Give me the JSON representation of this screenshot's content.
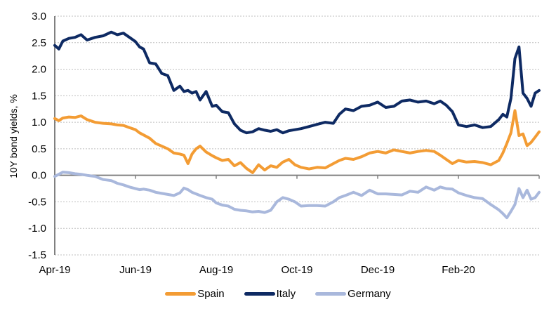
{
  "chart_data": {
    "type": "line",
    "title": "",
    "xlabel": "",
    "ylabel": "10Y bond yields, %",
    "ylim": [
      -1.5,
      3.0
    ],
    "yticks": [
      3.0,
      2.5,
      2.0,
      1.5,
      1.0,
      0.5,
      0.0,
      -0.5,
      -1.0,
      -1.5
    ],
    "ytick_labels": [
      "3.0",
      "2.5",
      "2.0",
      "1.5",
      "1.0",
      "0.5",
      "0.0",
      "-0.5",
      "-1.0",
      "-1.5"
    ],
    "xlim": [
      0,
      12
    ],
    "xticks": [
      0,
      2,
      4,
      6,
      8,
      10
    ],
    "xtick_labels": [
      "Apr-19",
      "Jun-19",
      "Aug-19",
      "Oct-19",
      "Dec-19",
      "Feb-20"
    ],
    "x_unit": "months since Apr-19",
    "grid": "horizontal dotted",
    "legend_position": "bottom",
    "x": [
      0.0,
      0.1,
      0.2,
      0.35,
      0.5,
      0.65,
      0.8,
      1.0,
      1.2,
      1.4,
      1.55,
      1.7,
      1.85,
      2.0,
      2.1,
      2.2,
      2.35,
      2.5,
      2.65,
      2.8,
      2.95,
      3.1,
      3.2,
      3.3,
      3.4,
      3.5,
      3.6,
      3.75,
      3.9,
      4.0,
      4.15,
      4.3,
      4.45,
      4.6,
      4.75,
      4.9,
      5.05,
      5.2,
      5.35,
      5.5,
      5.65,
      5.8,
      5.95,
      6.1,
      6.3,
      6.5,
      6.7,
      6.9,
      7.05,
      7.2,
      7.4,
      7.6,
      7.8,
      8.0,
      8.2,
      8.4,
      8.6,
      8.8,
      9.0,
      9.2,
      9.4,
      9.55,
      9.7,
      9.85,
      10.0,
      10.2,
      10.4,
      10.6,
      10.8,
      11.0,
      11.1,
      11.2,
      11.3,
      11.4,
      11.5,
      11.6,
      11.7,
      11.8,
      11.9,
      12.0
    ],
    "series": [
      {
        "name": "Spain",
        "color": "#F39C34",
        "values": [
          1.07,
          1.03,
          1.08,
          1.1,
          1.09,
          1.12,
          1.05,
          1.0,
          0.98,
          0.97,
          0.95,
          0.94,
          0.9,
          0.86,
          0.8,
          0.76,
          0.7,
          0.6,
          0.55,
          0.5,
          0.42,
          0.4,
          0.38,
          0.22,
          0.4,
          0.5,
          0.55,
          0.44,
          0.37,
          0.33,
          0.28,
          0.3,
          0.18,
          0.24,
          0.13,
          0.05,
          0.2,
          0.1,
          0.18,
          0.15,
          0.25,
          0.3,
          0.2,
          0.15,
          0.12,
          0.15,
          0.14,
          0.22,
          0.28,
          0.32,
          0.3,
          0.35,
          0.42,
          0.45,
          0.42,
          0.48,
          0.45,
          0.42,
          0.45,
          0.47,
          0.45,
          0.38,
          0.3,
          0.22,
          0.28,
          0.25,
          0.26,
          0.24,
          0.2,
          0.28,
          0.42,
          0.6,
          0.8,
          1.22,
          0.75,
          0.78,
          0.56,
          0.62,
          0.72,
          0.82
        ]
      },
      {
        "name": "Italy",
        "color": "#0E2A63",
        "values": [
          2.45,
          2.38,
          2.53,
          2.58,
          2.6,
          2.65,
          2.55,
          2.6,
          2.63,
          2.7,
          2.65,
          2.68,
          2.6,
          2.52,
          2.42,
          2.38,
          2.12,
          2.1,
          1.92,
          1.88,
          1.6,
          1.68,
          1.58,
          1.6,
          1.55,
          1.58,
          1.42,
          1.58,
          1.3,
          1.32,
          1.2,
          1.18,
          0.97,
          0.85,
          0.8,
          0.82,
          0.88,
          0.85,
          0.83,
          0.86,
          0.8,
          0.84,
          0.86,
          0.88,
          0.92,
          0.96,
          1.0,
          0.98,
          1.15,
          1.25,
          1.22,
          1.3,
          1.32,
          1.38,
          1.28,
          1.3,
          1.4,
          1.42,
          1.38,
          1.4,
          1.35,
          1.4,
          1.32,
          1.2,
          0.95,
          0.92,
          0.95,
          0.9,
          0.92,
          1.05,
          1.15,
          1.1,
          1.45,
          2.2,
          2.42,
          1.55,
          1.45,
          1.3,
          1.55,
          1.6
        ]
      },
      {
        "name": "Germany",
        "color": "#A9B8DC",
        "values": [
          -0.02,
          0.02,
          0.06,
          0.05,
          0.03,
          0.02,
          0.0,
          -0.02,
          -0.08,
          -0.1,
          -0.15,
          -0.18,
          -0.22,
          -0.25,
          -0.27,
          -0.26,
          -0.28,
          -0.32,
          -0.34,
          -0.36,
          -0.38,
          -0.33,
          -0.24,
          -0.27,
          -0.32,
          -0.35,
          -0.38,
          -0.42,
          -0.45,
          -0.52,
          -0.56,
          -0.58,
          -0.64,
          -0.66,
          -0.67,
          -0.69,
          -0.68,
          -0.7,
          -0.66,
          -0.5,
          -0.42,
          -0.45,
          -0.5,
          -0.58,
          -0.57,
          -0.57,
          -0.58,
          -0.5,
          -0.42,
          -0.38,
          -0.32,
          -0.38,
          -0.28,
          -0.35,
          -0.35,
          -0.36,
          -0.37,
          -0.3,
          -0.32,
          -0.22,
          -0.28,
          -0.22,
          -0.25,
          -0.26,
          -0.33,
          -0.38,
          -0.42,
          -0.44,
          -0.55,
          -0.65,
          -0.72,
          -0.8,
          -0.68,
          -0.55,
          -0.25,
          -0.42,
          -0.28,
          -0.45,
          -0.42,
          -0.32
        ]
      }
    ]
  },
  "legend": {
    "items": [
      {
        "label": "Spain",
        "color": "#F39C34"
      },
      {
        "label": "Italy",
        "color": "#0E2A63"
      },
      {
        "label": "Germany",
        "color": "#A9B8DC"
      }
    ]
  }
}
